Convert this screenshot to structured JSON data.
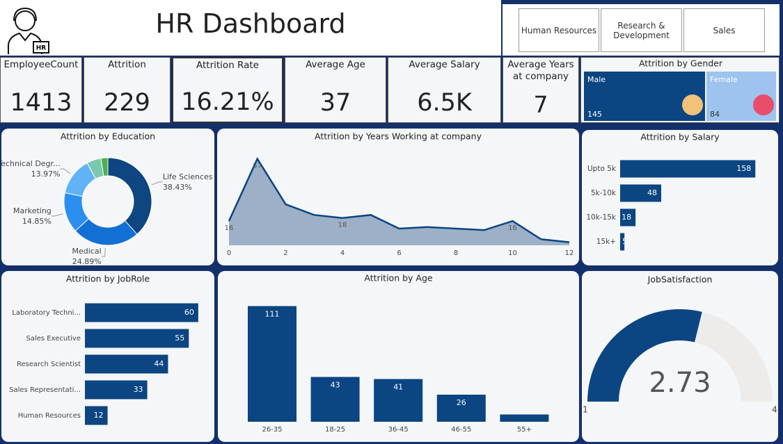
{
  "header": {
    "title": "HR Dashboard"
  },
  "slicers": [
    "Human Resources",
    "Research & Development",
    "Sales"
  ],
  "kpis": [
    {
      "label": "EmployeeCount",
      "value": 1413
    },
    {
      "label": "Attrition",
      "value": 229
    },
    {
      "label": "Attrition Rate",
      "value": {
        "value": 16.21,
        "label": "16.21%"
      }
    },
    {
      "label": "Average Age",
      "value": 37
    },
    {
      "label": "Average Salary",
      "value": {
        "value": 6500,
        "label": "6.5K"
      }
    },
    {
      "label": "Average Years at company",
      "value": 7
    }
  ],
  "chart_data": [
    {
      "type": "treemap",
      "title": "Attrition by Gender",
      "categories": [
        "Male",
        "Female"
      ],
      "values": [
        145,
        84
      ],
      "colors": [
        "#0b4582",
        "#9dc3ee"
      ]
    },
    {
      "type": "donut",
      "title": "Attrition by Education",
      "categories": [
        "Life Sciences",
        "Medical",
        "Marketing",
        "Technical Degr...",
        null,
        null
      ],
      "values": [
        38.43,
        24.89,
        14.85,
        13.97,
        5.3,
        2.56
      ],
      "value_labels": [
        "38.43%",
        "24.89%",
        "14.85%",
        "13.97%",
        null,
        null
      ],
      "colors": [
        "#0d4680",
        "#1270d4",
        "#2b8ff0",
        "#62b3f5",
        "#7cc7b0",
        "#4caf50"
      ]
    },
    {
      "type": "area",
      "title": "Attrition by Years Working at company",
      "x": [
        0,
        1,
        2,
        3,
        4,
        5,
        6,
        7,
        8,
        9,
        10,
        11,
        12
      ],
      "values": [
        16,
        57,
        27,
        20,
        18,
        20,
        11,
        12,
        11,
        10,
        16,
        4,
        2
      ],
      "value_labels": [
        "16",
        "57",
        null,
        null,
        "18",
        null,
        null,
        null,
        null,
        null,
        "16",
        null,
        null
      ],
      "color": "#0b4582",
      "xlim": [
        0,
        12
      ],
      "ylim": [
        0,
        60
      ],
      "xticks": [
        0,
        2,
        4,
        6,
        8,
        10,
        12
      ]
    },
    {
      "type": "hbar",
      "title": "Attrition by Salary",
      "categories": [
        "Upto 5k",
        "5k-10k",
        "10k-15k",
        "15k+"
      ],
      "values": [
        158,
        48,
        18,
        5
      ],
      "color": "#0b4582",
      "xlim": [
        0,
        170
      ]
    },
    {
      "type": "hbar",
      "title": "Attrition by JobRole",
      "categories": [
        "Laboratory Techni...",
        "Sales Executive",
        "Research Scientist",
        "Sales Representati...",
        "Human Resources"
      ],
      "values": [
        60,
        55,
        44,
        33,
        12
      ],
      "color": "#0b4582",
      "xlim": [
        0,
        70
      ]
    },
    {
      "type": "bar",
      "title": "Attrition by Age",
      "categories": [
        "26-35",
        "18-25",
        "36-45",
        "46-55",
        "55+"
      ],
      "values": [
        111,
        43,
        41,
        26,
        7
      ],
      "value_labels": [
        "111",
        "43",
        "41",
        "26",
        null
      ],
      "color": "#0b4582",
      "ylim": [
        0,
        120
      ]
    },
    {
      "type": "gauge",
      "title": "JobSatisfaction",
      "value": 2.73,
      "ylim": [
        1,
        4
      ],
      "yticks": [
        1,
        4
      ],
      "color": "#0b4582",
      "track": "#eeecea"
    }
  ]
}
